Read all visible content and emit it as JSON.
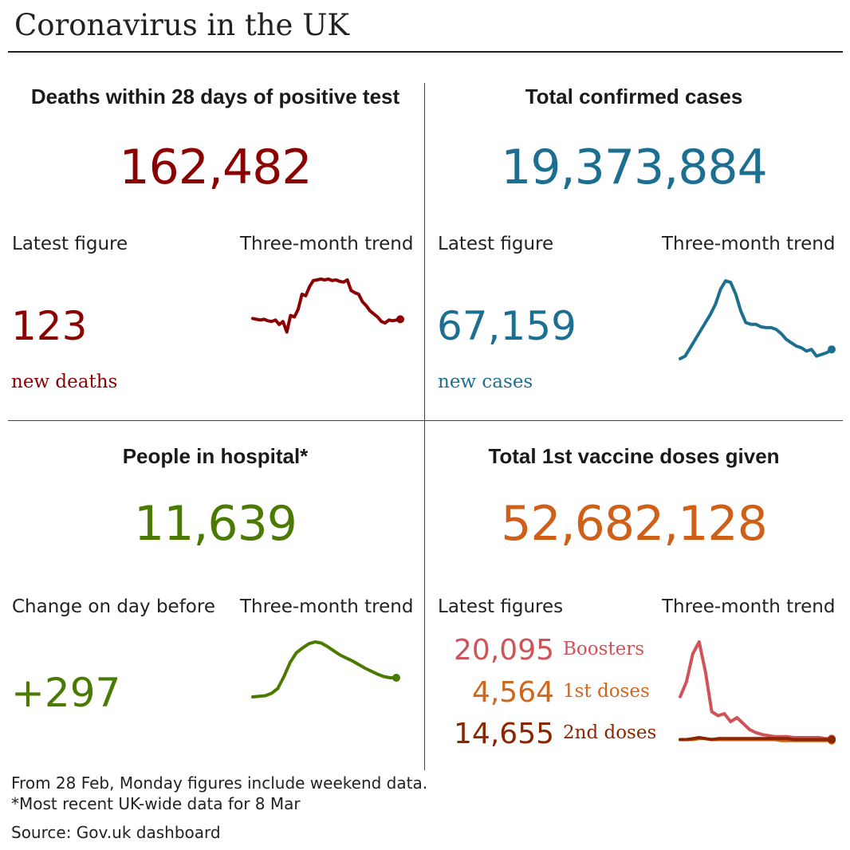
{
  "title": "Coronavirus in the UK",
  "colors": {
    "deaths": "#8b0000",
    "cases": "#1c6f91",
    "hospital": "#4a7a00",
    "vaccine": "#d05f17",
    "boosters": "#cf5359",
    "first_doses": "#d0671c",
    "second_doses": "#8b2600"
  },
  "deaths": {
    "title": "Deaths within 28 days of positive test",
    "total": "162,482",
    "latest_label": "Latest figure",
    "trend_label": "Three-month trend",
    "latest_value": "123",
    "latest_unit": "new deaths"
  },
  "cases": {
    "title": "Total confirmed cases",
    "total": "19,373,884",
    "latest_label": "Latest figure",
    "trend_label": "Three-month trend",
    "latest_value": "67,159",
    "latest_unit": "new cases"
  },
  "hospital": {
    "title": "People in hospital*",
    "total": "11,639",
    "latest_label": "Change on day before",
    "trend_label": "Three-month trend",
    "latest_value": "+297"
  },
  "vaccine": {
    "title": "Total 1st vaccine doses given",
    "total": "52,682,128",
    "latest_label": "Latest figures",
    "trend_label": "Three-month trend",
    "boosters_value": "20,095",
    "boosters_label": "Boosters",
    "first_value": "4,564",
    "first_label": "1st doses",
    "second_value": "14,655",
    "second_label": "2nd doses"
  },
  "footer": {
    "note1": "From 28 Feb, Monday figures include weekend data.",
    "note2": "*Most recent UK-wide data for 8 Mar",
    "source": "Source: Gov.uk dashboard"
  },
  "chart_data": [
    {
      "type": "line",
      "title": "Three-month trend",
      "series": [
        {
          "name": "new deaths",
          "values": [
            48,
            47,
            46,
            47,
            45,
            44,
            46,
            40,
            44,
            30,
            52,
            50,
            60,
            80,
            78,
            90,
            98,
            99,
            100,
            99,
            100,
            98,
            99,
            97,
            96,
            99,
            85,
            82,
            80,
            70,
            65,
            58,
            54,
            50,
            44,
            42,
            46,
            45,
            46,
            47
          ]
        }
      ]
    },
    {
      "type": "line",
      "title": "Three-month trend",
      "series": [
        {
          "name": "new cases",
          "values": [
            5,
            8,
            18,
            28,
            38,
            48,
            58,
            70,
            88,
            98,
            96,
            82,
            62,
            48,
            46,
            46,
            43,
            42,
            42,
            40,
            35,
            28,
            24,
            20,
            18,
            14,
            16,
            8,
            10,
            12,
            16
          ]
        }
      ]
    },
    {
      "type": "line",
      "title": "Three-month trend",
      "series": [
        {
          "name": "people in hospital",
          "values": [
            8,
            9,
            10,
            14,
            22,
            42,
            66,
            82,
            90,
            97,
            100,
            98,
            92,
            85,
            78,
            73,
            68,
            62,
            56,
            51,
            46,
            42,
            40,
            40
          ]
        }
      ]
    },
    {
      "type": "line",
      "title": "Three-month trend",
      "series": [
        {
          "name": "Boosters",
          "values": [
            45,
            60,
            88,
            100,
            70,
            30,
            26,
            28,
            20,
            24,
            18,
            12,
            9,
            7,
            6,
            5,
            5,
            5,
            4,
            4,
            4,
            4,
            4,
            3,
            3
          ]
        },
        {
          "name": "1st doses",
          "values": [
            2,
            2,
            2,
            3,
            3,
            2,
            2,
            2,
            2,
            2,
            2,
            2,
            2,
            2,
            2,
            2,
            1,
            1,
            1,
            1,
            1,
            1,
            1,
            1,
            1
          ]
        },
        {
          "name": "2nd doses",
          "values": [
            2,
            2,
            3,
            4,
            3,
            2,
            3,
            3,
            3,
            3,
            3,
            3,
            3,
            3,
            3,
            3,
            3,
            3,
            2,
            2,
            2,
            2,
            2,
            2,
            2
          ]
        }
      ]
    }
  ]
}
